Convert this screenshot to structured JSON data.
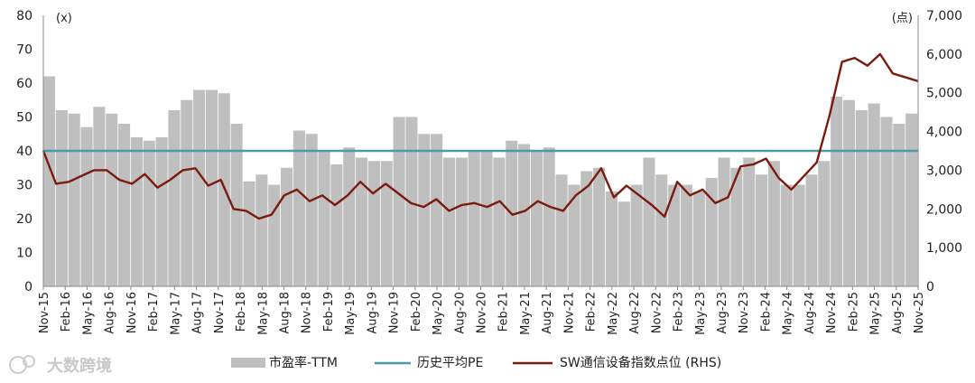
{
  "chart_data": {
    "type": "bar+line",
    "left_axis": {
      "unit": "(x)",
      "ticks": [
        0,
        10,
        20,
        30,
        40,
        50,
        60,
        70,
        80
      ],
      "range": [
        0,
        80
      ]
    },
    "right_axis": {
      "unit": "(点)",
      "ticks": [
        "0",
        "1,000",
        "2,000",
        "3,000",
        "4,000",
        "5,000",
        "6,000",
        "7,000"
      ],
      "range": [
        0,
        7000
      ]
    },
    "x_tick_labels": [
      "Nov-15",
      "Feb-16",
      "May-16",
      "Aug-16",
      "Nov-16",
      "Feb-17",
      "May-17",
      "Aug-17",
      "Nov-17",
      "Feb-18",
      "May-18",
      "Aug-18",
      "Nov-18",
      "Feb-19",
      "May-19",
      "Aug-19",
      "Nov-19",
      "Feb-20",
      "May-20",
      "Aug-20",
      "Nov-20",
      "Feb-21",
      "May-21",
      "Aug-21",
      "Nov-21",
      "Feb-22",
      "May-22",
      "Aug-22",
      "Nov-22",
      "Feb-23",
      "May-23",
      "Aug-23",
      "Nov-23",
      "Feb-24",
      "May-24",
      "Aug-24",
      "Nov-24",
      "Feb-25",
      "May-25",
      "Aug-25",
      "Nov-25"
    ],
    "series": [
      {
        "name": "市盈率-TTM",
        "type": "bar",
        "axis": "left",
        "color": "#bfbfbf",
        "values": [
          62,
          52,
          51,
          47,
          53,
          51,
          48,
          44,
          43,
          44,
          52,
          55,
          58,
          58,
          57,
          48,
          31,
          33,
          30,
          35,
          46,
          45,
          40,
          36,
          41,
          38,
          37,
          37,
          50,
          50,
          45,
          45,
          38,
          38,
          40,
          40,
          38,
          43,
          42,
          40,
          41,
          33,
          30,
          34,
          35,
          28,
          25,
          30,
          38,
          33,
          30,
          30,
          28,
          32,
          38,
          35,
          38,
          33,
          37,
          30,
          30,
          33,
          37,
          56,
          55,
          52,
          54,
          50,
          48,
          51
        ]
      },
      {
        "name": "历史平均PE",
        "type": "line",
        "axis": "left",
        "color": "#4a9ba6",
        "value": 40
      },
      {
        "name": "SW通信设备指数点位 (RHS)",
        "type": "line",
        "axis": "right",
        "color": "#7b1a0e",
        "values": [
          3500,
          2650,
          2700,
          2850,
          3000,
          3000,
          2750,
          2650,
          2900,
          2550,
          2750,
          3000,
          3050,
          2600,
          2750,
          2000,
          1950,
          1750,
          1850,
          2350,
          2500,
          2200,
          2350,
          2100,
          2350,
          2700,
          2400,
          2650,
          2400,
          2150,
          2050,
          2250,
          1950,
          2100,
          2150,
          2050,
          2200,
          1850,
          1950,
          2200,
          2050,
          1950,
          2350,
          2600,
          3050,
          2300,
          2600,
          2350,
          2100,
          1800,
          2700,
          2350,
          2500,
          2150,
          2300,
          3100,
          3150,
          3300,
          2800,
          2500,
          2850,
          3200,
          4400,
          5800,
          5900,
          5700,
          6000,
          5500,
          5400,
          5300
        ]
      }
    ],
    "legend": {
      "position": "bottom"
    }
  },
  "watermark": {
    "text": "大数跨境"
  }
}
